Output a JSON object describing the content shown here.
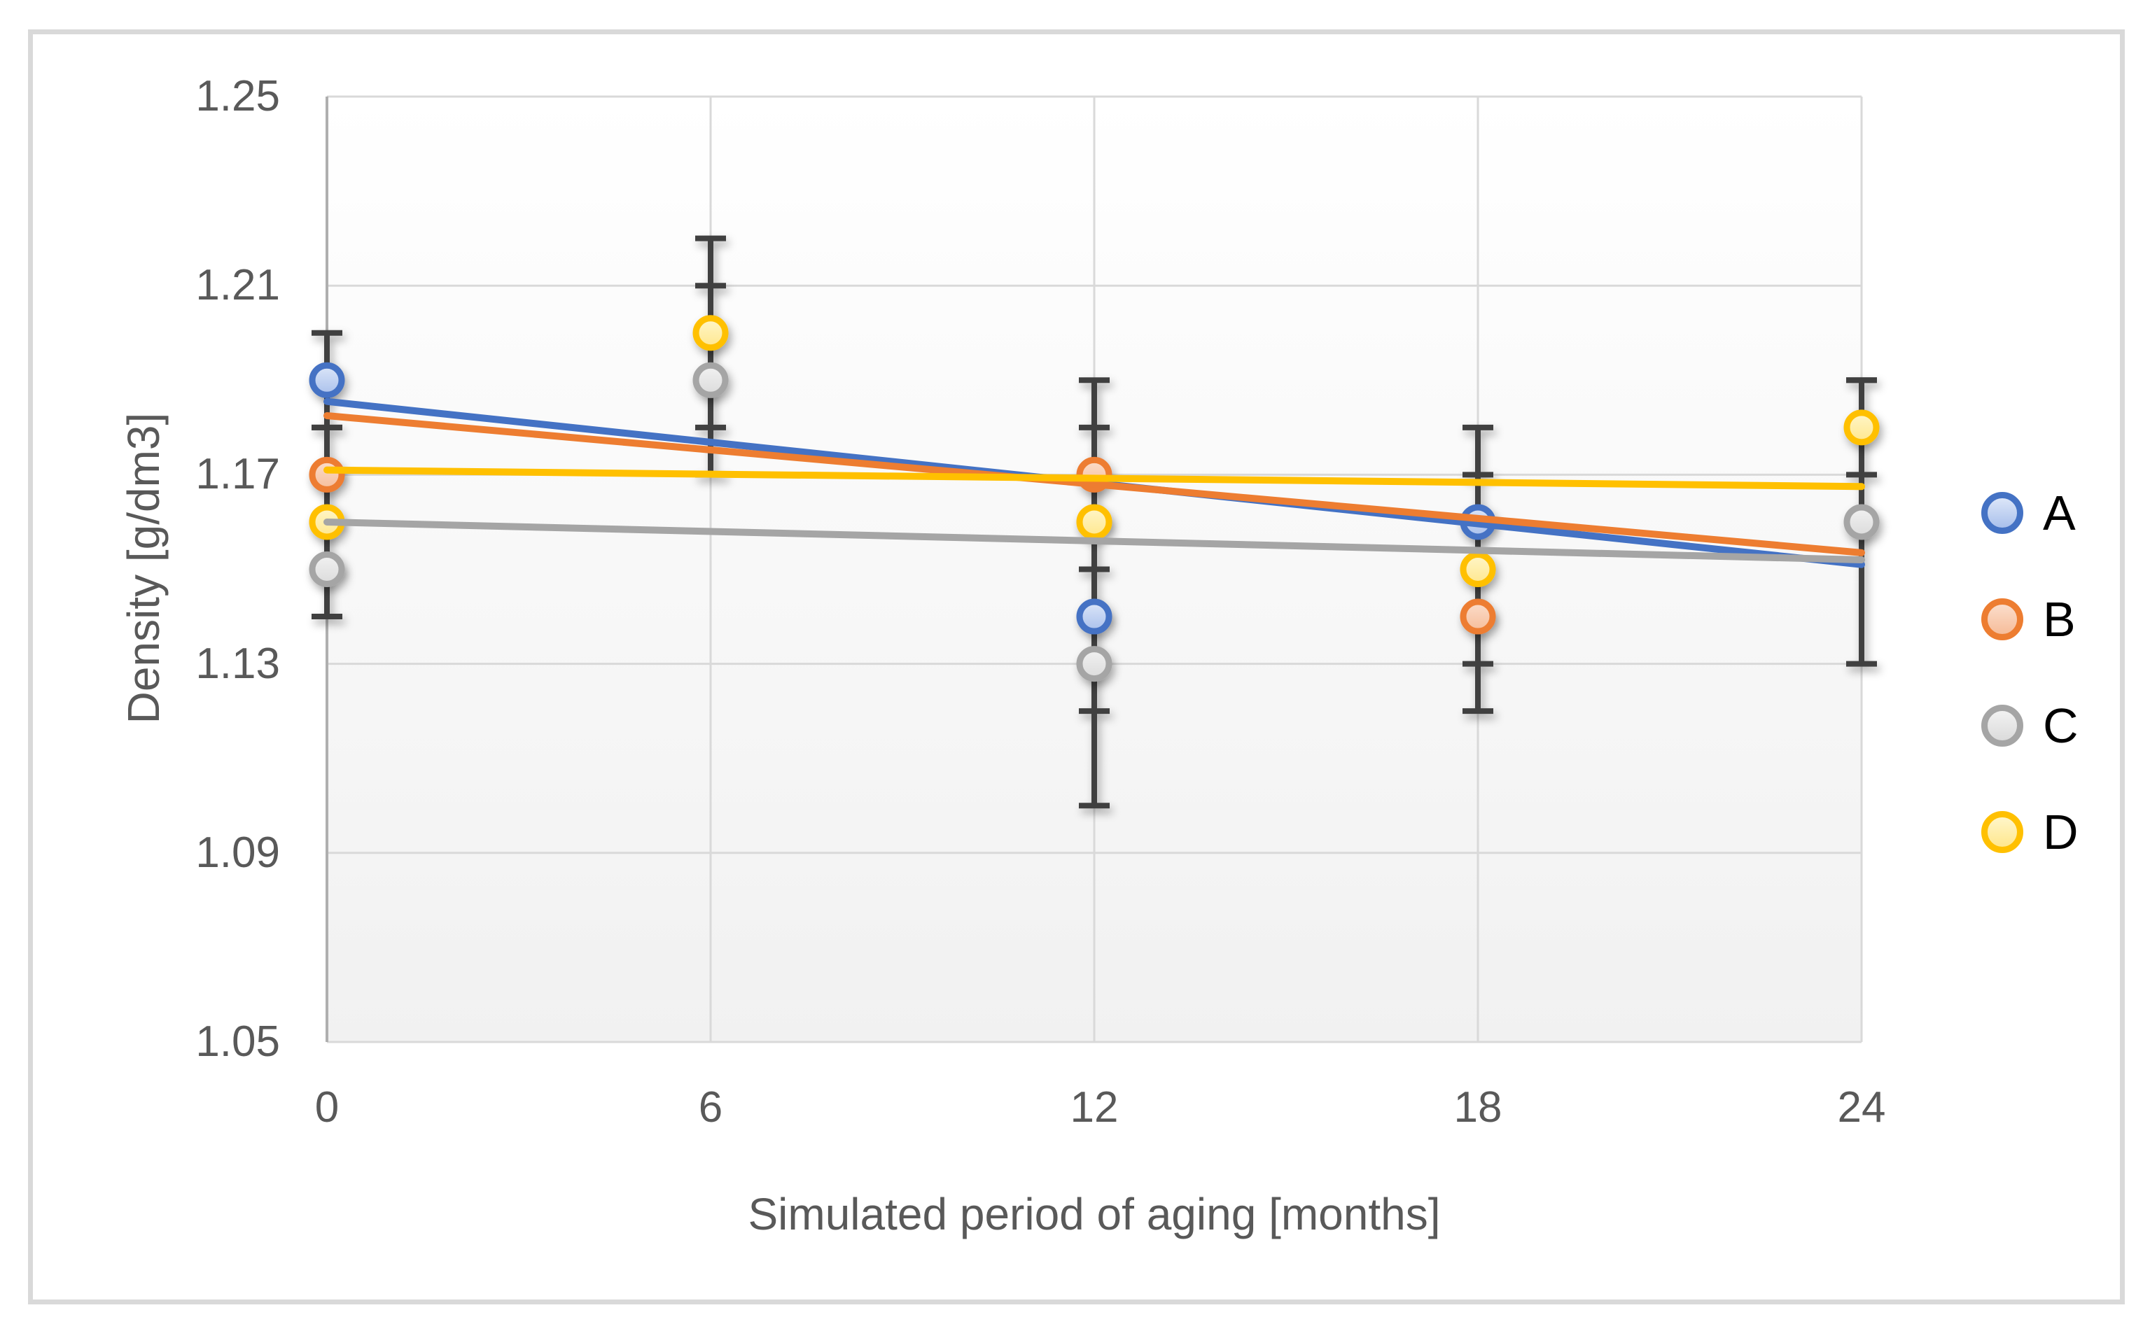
{
  "figure": {
    "border_color": "#D9D9D9",
    "background": "#FFFFFF"
  },
  "chart_data": {
    "type": "scatter",
    "title": "",
    "xlabel": "Simulated period of aging [months]",
    "ylabel": "Density [g/dm3]",
    "xlim": [
      0,
      24
    ],
    "ylim": [
      1.05,
      1.25
    ],
    "x_ticks": [
      "0",
      "6",
      "12",
      "18",
      "24"
    ],
    "y_ticks": [
      "1.25",
      "1.21",
      "1.17",
      "1.13",
      "1.09",
      "1.05"
    ],
    "grid": true,
    "gridline_color": "#D9D9D9",
    "axis_line_color": "#AFAFAF",
    "tick_label_color": "#595959",
    "plot_bg_top": "#FFFFFF",
    "plot_bg_bottom": "#F1F1F1",
    "error_bar_color": "#404040",
    "legend_position": "right",
    "series": [
      {
        "name": "A",
        "color": "#4472C4",
        "fill_light": "#DCE6F8",
        "fill_dark": "#A9C0EC",
        "points": [
          {
            "x": 0,
            "y": 1.19,
            "lo": 1.18,
            "hi": 1.2
          },
          {
            "x": 12,
            "y": 1.14,
            "lo": 1.12,
            "hi": 1.16
          },
          {
            "x": 18,
            "y": 1.16,
            "lo": 1.14,
            "hi": 1.18
          }
        ],
        "trendline": {
          "x0": 0,
          "y0": 1.1855,
          "x1": 24,
          "y1": 1.151
        }
      },
      {
        "name": "B",
        "color": "#ED7D31",
        "fill_light": "#FBDDCB",
        "fill_dark": "#F6BD9A",
        "points": [
          {
            "x": 0,
            "y": 1.17,
            "lo": 1.16,
            "hi": 1.18
          },
          {
            "x": 12,
            "y": 1.17,
            "lo": 1.15,
            "hi": 1.19
          },
          {
            "x": 18,
            "y": 1.14,
            "lo": 1.12,
            "hi": 1.16
          }
        ],
        "trendline": {
          "x0": 0,
          "y0": 1.1825,
          "x1": 24,
          "y1": 1.1535
        }
      },
      {
        "name": "C",
        "color": "#A5A5A5",
        "fill_light": "#F2F2F2",
        "fill_dark": "#DBDBDB",
        "points": [
          {
            "x": 0,
            "y": 1.15,
            "lo": 1.14,
            "hi": 1.16
          },
          {
            "x": 6,
            "y": 1.19,
            "lo": 1.17,
            "hi": 1.21
          },
          {
            "x": 12,
            "y": 1.13,
            "lo": 1.1,
            "hi": 1.16
          },
          {
            "x": 24,
            "y": 1.16,
            "lo": 1.13,
            "hi": 1.19
          }
        ],
        "trendline": {
          "x0": 0,
          "y0": 1.16,
          "x1": 24,
          "y1": 1.152
        }
      },
      {
        "name": "D",
        "color": "#FFC000",
        "fill_light": "#FFF6C9",
        "fill_dark": "#FFE78E",
        "points": [
          {
            "x": 0,
            "y": 1.16,
            "lo": 1.15,
            "hi": 1.17
          },
          {
            "x": 6,
            "y": 1.2,
            "lo": 1.18,
            "hi": 1.22
          },
          {
            "x": 12,
            "y": 1.16,
            "lo": 1.14,
            "hi": 1.18
          },
          {
            "x": 18,
            "y": 1.15,
            "lo": 1.13,
            "hi": 1.17
          },
          {
            "x": 24,
            "y": 1.18,
            "lo": 1.17,
            "hi": 1.19
          }
        ],
        "trendline": {
          "x0": 0,
          "y0": 1.171,
          "x1": 24,
          "y1": 1.1675
        }
      }
    ]
  },
  "axes": {
    "x_title": "Simulated period of aging [months]",
    "y_title": "Density [g/dm3]"
  },
  "legend": {
    "items": [
      {
        "label": "A"
      },
      {
        "label": "B"
      },
      {
        "label": "C"
      },
      {
        "label": "D"
      }
    ]
  }
}
